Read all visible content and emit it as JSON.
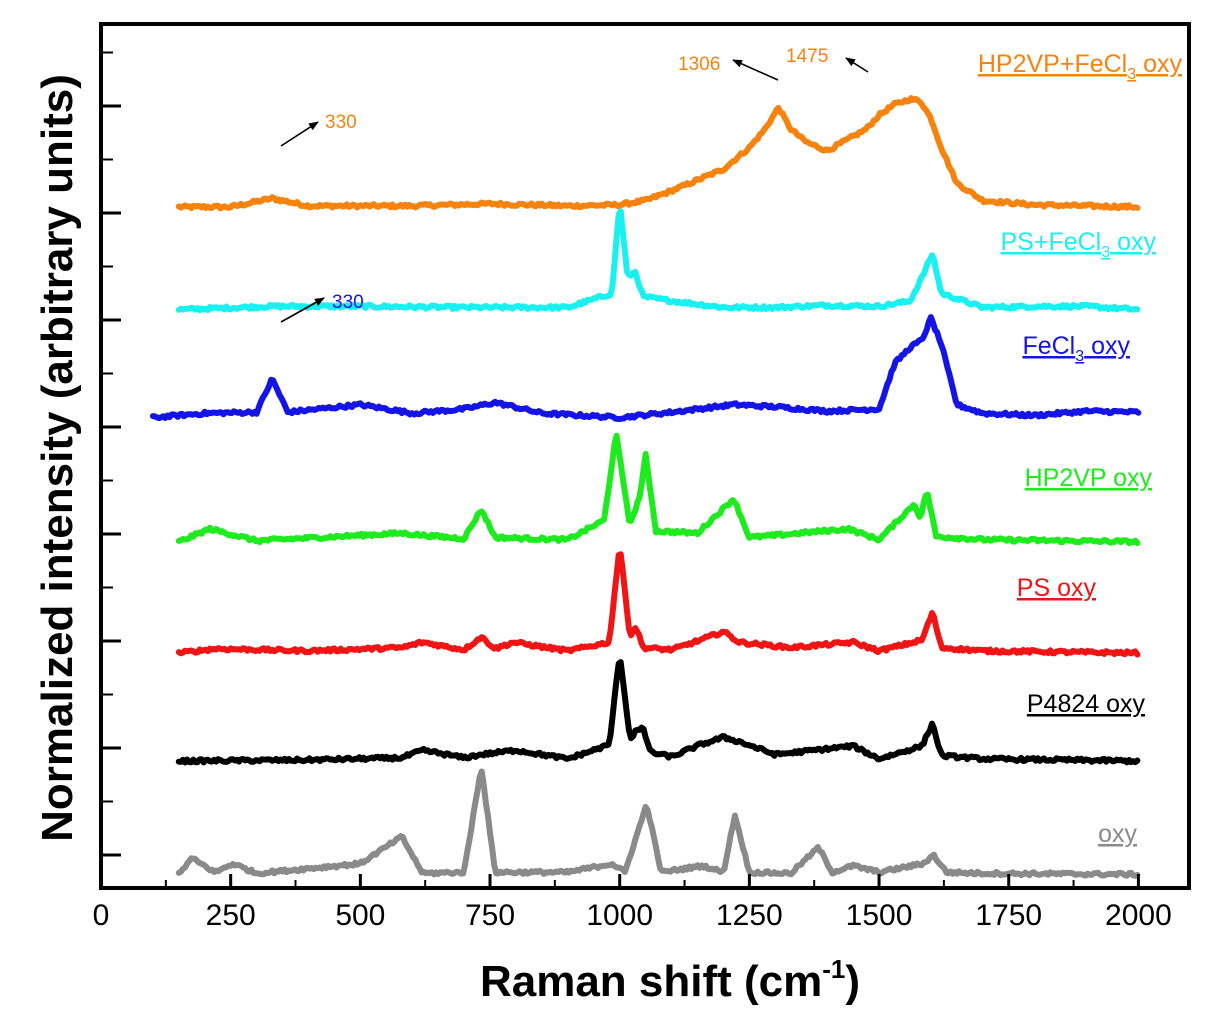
{
  "chart_data": {
    "type": "line",
    "xlabel": "Raman shift (cm",
    "xlabel_sup": "-1",
    "xlabel_close": ")",
    "ylabel": "Normalized intensity (arbitrary units)",
    "xlim": [
      0,
      2100
    ],
    "xticks": [
      "0",
      "250",
      "500",
      "750",
      "1000",
      "1250",
      "1500",
      "1750",
      "2000"
    ],
    "y_tick_labels_shown": false,
    "grid": false,
    "legend_placement": "inline-right",
    "colors": {
      "orange": "#f7830f",
      "cyan": "#19f0f0",
      "blue": "#1414e6",
      "green": "#1eeb1e",
      "red": "#f01414",
      "black": "#000000",
      "gray": "#8a8a8a"
    },
    "series": [
      {
        "label_main": "HP2VP+FeCl",
        "label_sub": "3",
        "label_tail": " oxy",
        "color": "#f7830f",
        "baseline_offset": 6,
        "x": [
          150,
          250,
          330,
          400,
          600,
          750,
          900,
          1000,
          1050,
          1100,
          1150,
          1200,
          1250,
          1280,
          1306,
          1330,
          1360,
          1400,
          1430,
          1475,
          1500,
          1530,
          1560,
          1580,
          1600,
          1620,
          1650,
          1700,
          1800,
          1900,
          2000
        ],
        "y": [
          0,
          0,
          0.08,
          0.01,
          0.01,
          0.03,
          0.01,
          0.02,
          0.06,
          0.15,
          0.25,
          0.35,
          0.55,
          0.72,
          0.92,
          0.72,
          0.6,
          0.52,
          0.6,
          0.72,
          0.85,
          0.95,
          1.0,
          0.98,
          0.82,
          0.55,
          0.22,
          0.06,
          0.02,
          0.01,
          0.0
        ]
      },
      {
        "label_main": "PS+FeCl",
        "label_sub": "3",
        "label_tail": " oxy",
        "color": "#19f0f0",
        "baseline_offset": 5.05,
        "x": [
          150,
          330,
          500,
          700,
          900,
          985,
          1000,
          1015,
          1030,
          1045,
          1100,
          1200,
          1300,
          1400,
          1500,
          1560,
          1583,
          1603,
          1620,
          1700,
          1800,
          1900,
          2000
        ],
        "y": [
          0,
          0.03,
          0.03,
          0.02,
          0.02,
          0.15,
          1.0,
          0.3,
          0.35,
          0.12,
          0.08,
          0.02,
          0.02,
          0.04,
          0.03,
          0.08,
          0.3,
          0.52,
          0.15,
          0.02,
          0.03,
          0.03,
          0.0
        ]
      },
      {
        "label_main": "FeCl",
        "label_sub": "3",
        "label_tail": " oxy",
        "color": "#1414e6",
        "baseline_offset": 4.05,
        "x": [
          100,
          200,
          300,
          330,
          360,
          500,
          600,
          700,
          760,
          850,
          1000,
          1100,
          1220,
          1300,
          1400,
          1500,
          1530,
          1560,
          1583,
          1600,
          1620,
          1650,
          1700,
          1800,
          1900,
          2000
        ],
        "y": [
          0,
          0.04,
          0.05,
          0.36,
          0.05,
          0.12,
          0.04,
          0.08,
          0.14,
          0.04,
          0.0,
          0.05,
          0.12,
          0.1,
          0.06,
          0.08,
          0.5,
          0.65,
          0.72,
          0.92,
          0.68,
          0.12,
          0.04,
          0.02,
          0.06,
          0.05
        ]
      },
      {
        "label_main": "HP2VP oxy",
        "label_sub": "",
        "label_tail": "",
        "color": "#1eeb1e",
        "baseline_offset": 2.9,
        "x": [
          150,
          210,
          300,
          580,
          620,
          700,
          733,
          760,
          900,
          970,
          993,
          1020,
          1040,
          1050,
          1070,
          1150,
          1220,
          1250,
          1300,
          1440,
          1500,
          1568,
          1580,
          1592,
          1610,
          1700,
          2000
        ],
        "y": [
          0,
          0.12,
          0.01,
          0.08,
          0.06,
          0.03,
          0.3,
          0.04,
          0.02,
          0.2,
          1.0,
          0.15,
          0.45,
          0.8,
          0.1,
          0.08,
          0.4,
          0.04,
          0.06,
          0.12,
          0.02,
          0.35,
          0.22,
          0.48,
          0.05,
          0.02,
          0.0
        ]
      },
      {
        "label_main": "PS oxy",
        "label_sub": "",
        "label_tail": "",
        "color": "#f01414",
        "baseline_offset": 1.87,
        "x": [
          150,
          220,
          400,
          580,
          620,
          700,
          733,
          760,
          795,
          900,
          980,
          1000,
          1020,
          1031,
          1045,
          1100,
          1155,
          1200,
          1230,
          1330,
          1450,
          1500,
          1583,
          1603,
          1620,
          1700,
          2000
        ],
        "y": [
          0,
          0.04,
          0.02,
          0.05,
          0.1,
          0.03,
          0.15,
          0.04,
          0.1,
          0.02,
          0.1,
          1.0,
          0.15,
          0.25,
          0.05,
          0.03,
          0.12,
          0.2,
          0.1,
          0.05,
          0.1,
          0.02,
          0.12,
          0.38,
          0.05,
          0.02,
          0.0
        ]
      },
      {
        "label_main": "P4824 oxy",
        "label_sub": "",
        "label_tail": "",
        "color": "#000000",
        "baseline_offset": 0.87,
        "x": [
          150,
          400,
          580,
          620,
          700,
          733,
          800,
          900,
          980,
          1000,
          1020,
          1031,
          1045,
          1060,
          1100,
          1155,
          1200,
          1230,
          1300,
          1450,
          1500,
          1583,
          1603,
          1620,
          1700,
          2000
        ],
        "y": [
          0,
          0.01,
          0.03,
          0.1,
          0.03,
          0.06,
          0.1,
          0.02,
          0.15,
          1.0,
          0.2,
          0.28,
          0.3,
          0.08,
          0.04,
          0.15,
          0.22,
          0.18,
          0.06,
          0.14,
          0.02,
          0.14,
          0.35,
          0.05,
          0.02,
          0.0
        ]
      },
      {
        "label_main": "oxy",
        "label_sub": "",
        "label_tail": "",
        "color": "#8a8a8a",
        "baseline_offset": -0.18,
        "x": [
          150,
          175,
          220,
          255,
          300,
          500,
          580,
          620,
          700,
          733,
          760,
          900,
          985,
          1010,
          1052,
          1080,
          1160,
          1200,
          1222,
          1250,
          1330,
          1383,
          1410,
          1450,
          1500,
          1585,
          1605,
          1630,
          1700,
          2000
        ],
        "y": [
          0,
          0.15,
          0.02,
          0.1,
          0.01,
          0.1,
          0.35,
          0.01,
          0.02,
          1.0,
          0.02,
          0.02,
          0.1,
          0.02,
          0.65,
          0.02,
          0.08,
          0.02,
          0.55,
          0.02,
          0.01,
          0.25,
          0.02,
          0.08,
          0.02,
          0.1,
          0.18,
          0.02,
          0.01,
          0.0
        ]
      }
    ],
    "annotations": [
      {
        "text": "330",
        "color": "#f7830f"
      },
      {
        "text": "1306",
        "color": "#f7830f"
      },
      {
        "text": "1475",
        "color": "#f7830f"
      },
      {
        "text": "330",
        "color": "#1414e6"
      }
    ]
  }
}
